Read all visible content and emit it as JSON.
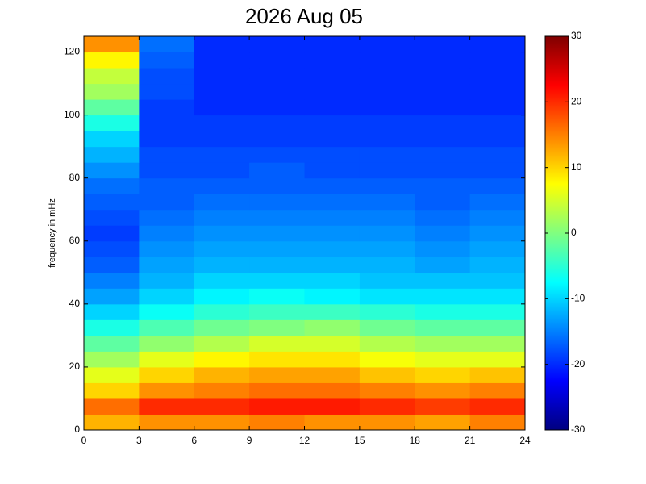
{
  "chart_data": {
    "type": "heatmap",
    "title": "2026 Aug 05",
    "ylabel": "frequency in mHz",
    "x_edges": [
      0,
      3,
      6,
      9,
      12,
      15,
      18,
      21,
      24
    ],
    "y_edges": [
      0,
      5,
      10,
      15,
      20,
      25,
      30,
      35,
      40,
      45,
      50,
      55,
      60,
      65,
      70,
      75,
      80,
      85,
      90,
      95,
      100,
      105,
      110,
      115,
      120,
      125
    ],
    "z": [
      [
        12,
        14,
        14,
        15,
        14,
        14,
        13,
        15
      ],
      [
        16,
        20,
        20,
        21,
        21,
        20,
        19,
        20
      ],
      [
        10,
        14,
        15,
        16,
        16,
        15,
        14,
        15
      ],
      [
        6,
        10,
        12,
        13,
        13,
        11,
        10,
        11
      ],
      [
        2,
        6,
        8,
        9,
        9,
        7,
        6,
        6
      ],
      [
        -2,
        1,
        3,
        5,
        5,
        3,
        2,
        2
      ],
      [
        -6,
        -3,
        -1,
        0,
        1,
        -1,
        -2,
        -2
      ],
      [
        -10,
        -7,
        -5,
        -4,
        -4,
        -5,
        -6,
        -6
      ],
      [
        -13,
        -10,
        -8,
        -7,
        -8,
        -9,
        -9,
        -9
      ],
      [
        -15,
        -12,
        -10,
        -10,
        -10,
        -11,
        -11,
        -11
      ],
      [
        -17,
        -13,
        -12,
        -12,
        -12,
        -12,
        -13,
        -12
      ],
      [
        -18,
        -14,
        -13,
        -13,
        -13,
        -13,
        -14,
        -13
      ],
      [
        -19,
        -15,
        -14,
        -14,
        -14,
        -14,
        -15,
        -14
      ],
      [
        -18,
        -16,
        -15,
        -15,
        -15,
        -15,
        -16,
        -15
      ],
      [
        -17,
        -17,
        -16,
        -16,
        -16,
        -16,
        -17,
        -16
      ],
      [
        -16,
        -17,
        -17,
        -17,
        -17,
        -17,
        -17,
        -17
      ],
      [
        -14,
        -18,
        -18,
        -17,
        -18,
        -18,
        -18,
        -18
      ],
      [
        -12,
        -18,
        -18,
        -18,
        -18,
        -18,
        -18,
        -18
      ],
      [
        -10,
        -19,
        -19,
        -19,
        -19,
        -19,
        -19,
        -19
      ],
      [
        -6,
        -19,
        -19,
        -19,
        -19,
        -19,
        -19,
        -19
      ],
      [
        -2,
        -19,
        -20,
        -20,
        -20,
        -20,
        -20,
        -20
      ],
      [
        2,
        -18,
        -20,
        -20,
        -20,
        -20,
        -20,
        -20
      ],
      [
        4,
        -18,
        -20,
        -20,
        -20,
        -20,
        -20,
        -20
      ],
      [
        8,
        -17,
        -20,
        -20,
        -20,
        -20,
        -20,
        -20
      ],
      [
        14,
        -16,
        -20,
        -20,
        -20,
        -20,
        -20,
        -20
      ]
    ],
    "xlim": [
      0,
      24
    ],
    "xticks": [
      0,
      3,
      6,
      9,
      12,
      15,
      18,
      21,
      24
    ],
    "ylim": [
      0,
      125
    ],
    "yticks": [
      0,
      20,
      40,
      60,
      80,
      100,
      120
    ],
    "clim": [
      -30,
      30
    ],
    "cticks": [
      -30,
      -20,
      -10,
      0,
      10,
      20,
      30
    ],
    "colormap": "jet"
  }
}
